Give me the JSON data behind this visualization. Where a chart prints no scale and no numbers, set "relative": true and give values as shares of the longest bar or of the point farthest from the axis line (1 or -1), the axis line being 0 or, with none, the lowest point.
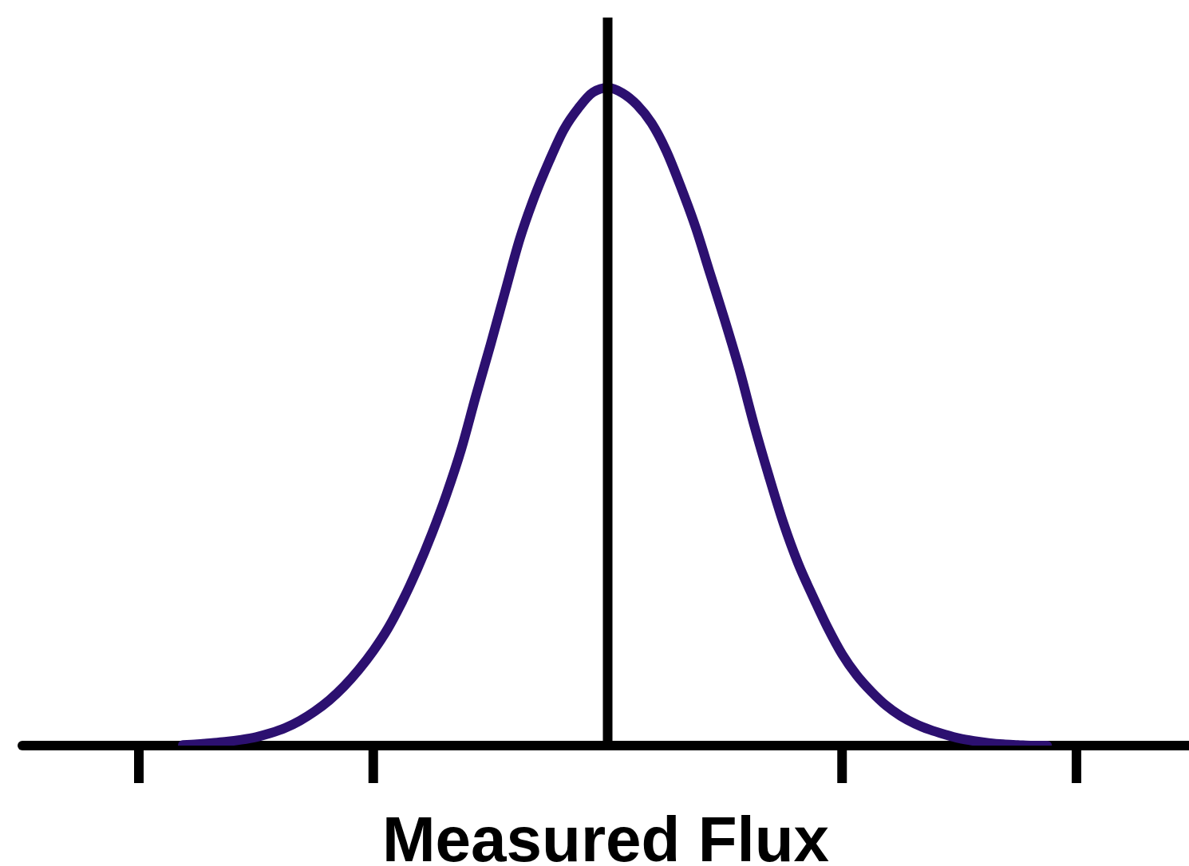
{
  "chart_data": {
    "type": "line",
    "xlabel": "Measured Flux",
    "relative": true,
    "color": "#2c1070",
    "categories": [
      null,
      null,
      null,
      null,
      null,
      null,
      null,
      null,
      null,
      null,
      null,
      null,
      null,
      null,
      null,
      null,
      null,
      null,
      null,
      null,
      null,
      null,
      null,
      null,
      null,
      null,
      null,
      null,
      null,
      null,
      null,
      null,
      null,
      null,
      null,
      null,
      null,
      null,
      null,
      null,
      null,
      null,
      null,
      null,
      null,
      null,
      null,
      null,
      null,
      null,
      null,
      null,
      null,
      null,
      null,
      null,
      null,
      null,
      null,
      null,
      null,
      null,
      null,
      null,
      null
    ],
    "values": [
      null,
      null,
      null,
      0.001,
      0.002,
      0.004,
      0.006,
      0.009,
      0.013,
      0.019,
      0.027,
      0.038,
      0.052,
      0.069,
      0.09,
      0.115,
      0.144,
      0.178,
      0.22,
      0.268,
      0.322,
      0.382,
      0.45,
      0.531,
      0.609,
      0.69,
      0.77,
      0.834,
      0.888,
      0.936,
      0.969,
      0.993,
      1,
      0.992,
      0.974,
      0.946,
      0.904,
      0.849,
      0.788,
      0.717,
      0.646,
      0.571,
      0.487,
      0.41,
      0.338,
      0.277,
      0.227,
      0.18,
      0.139,
      0.107,
      0.082,
      0.061,
      0.045,
      0.033,
      0.024,
      0.017,
      0.011,
      0.007,
      0.004,
      0.002,
      0.001,
      0,
      0,
      null,
      null
    ]
  }
}
